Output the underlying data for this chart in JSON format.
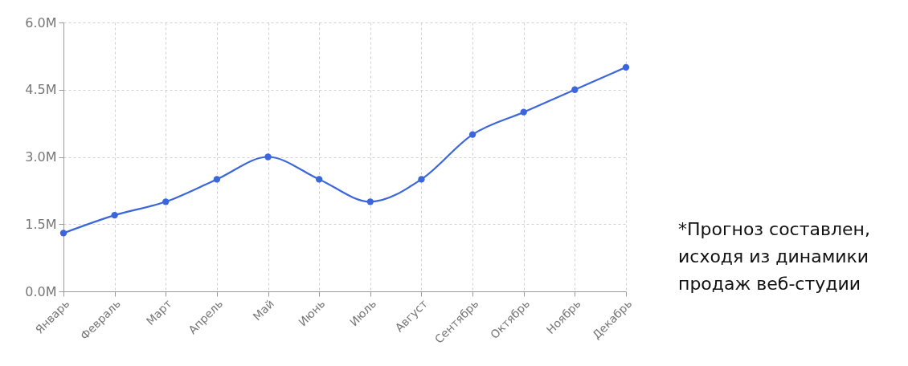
{
  "chart_data": {
    "type": "line",
    "categories": [
      "Январь",
      "Февраль",
      "Март",
      "Апрель",
      "Май",
      "Июнь",
      "Июль",
      "Август",
      "Сентябрь",
      "Октябрь",
      "Ноябрь",
      "Декабрь"
    ],
    "series": [
      {
        "color": "#3b66dc",
        "values": [
          1300000,
          1700000,
          2000000,
          2500000,
          3000000,
          2500000,
          2000000,
          2500000,
          3500000,
          4000000,
          4500000,
          5000000
        ]
      }
    ],
    "ylim": [
      0,
      6000000
    ],
    "yticks": [
      {
        "value": 0,
        "label": "0.0M"
      },
      {
        "value": 1500000,
        "label": "1.5M"
      },
      {
        "value": 3000000,
        "label": "3.0M"
      },
      {
        "value": 4500000,
        "label": "4.5M"
      },
      {
        "value": 6000000,
        "label": "6.0M"
      }
    ],
    "grid": true,
    "marker": "circle",
    "line_style": "solid",
    "annotations": [
      "*Прогноз составлен,\nисходя из динамики\nпродаж веб-студии"
    ]
  }
}
